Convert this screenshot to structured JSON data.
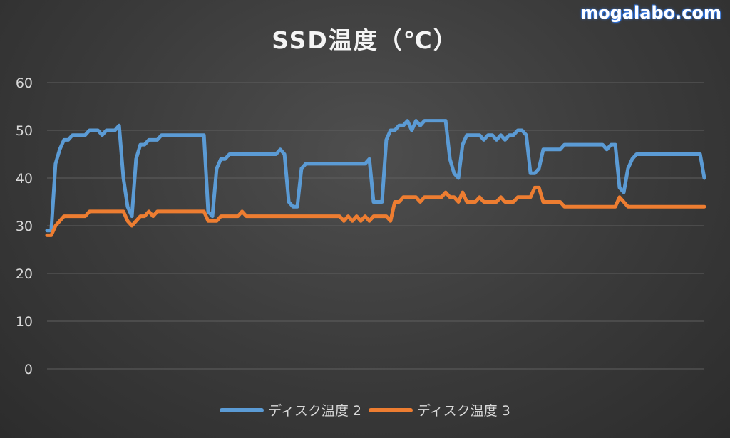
{
  "watermark": "mogalabo.com",
  "chart_data": {
    "type": "line",
    "title": "SSD温度（℃）",
    "xlabel": "",
    "ylabel": "",
    "ylim": [
      0,
      60
    ],
    "yticks": [
      0,
      10,
      20,
      30,
      40,
      50,
      60
    ],
    "ytick_labels": [
      "0",
      "10",
      "20",
      "30",
      "40",
      "50",
      "60"
    ],
    "grid": true,
    "legend_position": "bottom",
    "series": [
      {
        "name": "ディスク温度 2",
        "color": "#5b9bd5",
        "values": [
          29,
          29,
          43,
          46,
          48,
          48,
          49,
          49,
          49,
          49,
          50,
          50,
          50,
          49,
          50,
          50,
          50,
          51,
          40,
          34,
          32,
          44,
          47,
          47,
          48,
          48,
          48,
          49,
          49,
          49,
          49,
          49,
          49,
          49,
          49,
          49,
          49,
          49,
          33,
          32,
          42,
          44,
          44,
          45,
          45,
          45,
          45,
          45,
          45,
          45,
          45,
          45,
          45,
          45,
          45,
          46,
          45,
          35,
          34,
          34,
          42,
          43,
          43,
          43,
          43,
          43,
          43,
          43,
          43,
          43,
          43,
          43,
          43,
          43,
          43,
          43,
          44,
          35,
          35,
          35,
          48,
          50,
          50,
          51,
          51,
          52,
          50,
          52,
          51,
          52,
          52,
          52,
          52,
          52,
          52,
          44,
          41,
          40,
          47,
          49,
          49,
          49,
          49,
          48,
          49,
          49,
          48,
          49,
          48,
          49,
          49,
          50,
          50,
          49,
          41,
          41,
          42,
          46,
          46,
          46,
          46,
          46,
          47,
          47,
          47,
          47,
          47,
          47,
          47,
          47,
          47,
          47,
          46,
          47,
          47,
          38,
          37,
          42,
          44,
          45,
          45,
          45,
          45,
          45,
          45,
          45,
          45,
          45,
          45,
          45,
          45,
          45,
          45,
          45,
          45,
          40
        ]
      },
      {
        "name": "ディスク温度 3",
        "color": "#ed7d31",
        "values": [
          28,
          28,
          30,
          31,
          32,
          32,
          32,
          32,
          32,
          32,
          33,
          33,
          33,
          33,
          33,
          33,
          33,
          33,
          33,
          31,
          30,
          31,
          32,
          32,
          33,
          32,
          33,
          33,
          33,
          33,
          33,
          33,
          33,
          33,
          33,
          33,
          33,
          33,
          31,
          31,
          31,
          32,
          32,
          32,
          32,
          32,
          33,
          32,
          32,
          32,
          32,
          32,
          32,
          32,
          32,
          32,
          32,
          32,
          32,
          32,
          32,
          32,
          32,
          32,
          32,
          32,
          32,
          32,
          32,
          32,
          31,
          32,
          31,
          32,
          31,
          32,
          31,
          32,
          32,
          32,
          32,
          31,
          35,
          35,
          36,
          36,
          36,
          36,
          35,
          36,
          36,
          36,
          36,
          36,
          37,
          36,
          36,
          35,
          37,
          35,
          35,
          35,
          36,
          35,
          35,
          35,
          35,
          36,
          35,
          35,
          35,
          36,
          36,
          36,
          36,
          38,
          38,
          35,
          35,
          35,
          35,
          35,
          34,
          34,
          34,
          34,
          34,
          34,
          34,
          34,
          34,
          34,
          34,
          34,
          34,
          36,
          35,
          34,
          34,
          34,
          34,
          34,
          34,
          34,
          34,
          34,
          34,
          34,
          34,
          34,
          34,
          34,
          34,
          34,
          34,
          34
        ]
      }
    ]
  }
}
